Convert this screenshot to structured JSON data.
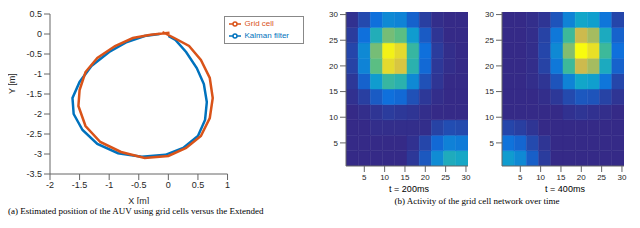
{
  "chart_data": [
    {
      "type": "line",
      "caption": "(a) Estimated position of the AUV using grid cells versus the Extended",
      "xlabel": "X [m]",
      "ylabel": "Y [m]",
      "xlim": [
        -2,
        1
      ],
      "xticks": [
        -2,
        -1.5,
        -1,
        -0.5,
        0,
        0.5,
        1
      ],
      "ylim": [
        -3.5,
        0.5
      ],
      "yticks": [
        -3.5,
        -3,
        -2.5,
        -2,
        -1.5,
        -1,
        -0.5,
        0,
        0.5
      ],
      "grid": false,
      "legend": "upper right",
      "series": [
        {
          "name": "Kalman filter",
          "color": "#0072bd",
          "x": [
            -0.15,
            -0.4,
            -0.7,
            -1.0,
            -1.3,
            -1.5,
            -1.62,
            -1.6,
            -1.45,
            -1.2,
            -0.85,
            -0.45,
            -0.05,
            0.25,
            0.5,
            0.62,
            0.65,
            0.6,
            0.48,
            0.3,
            0.12,
            0.0
          ],
          "values": [
            0.0,
            -0.05,
            -0.2,
            -0.45,
            -0.8,
            -1.2,
            -1.6,
            -2.0,
            -2.4,
            -2.75,
            -2.98,
            -3.07,
            -3.02,
            -2.85,
            -2.55,
            -2.15,
            -1.7,
            -1.25,
            -0.85,
            -0.45,
            -0.15,
            -0.05
          ]
        },
        {
          "name": "Grid cell",
          "color": "#d95319",
          "x": [
            0.02,
            -0.3,
            -0.6,
            -0.9,
            -1.2,
            -1.4,
            -1.5,
            -1.52,
            -1.4,
            -1.15,
            -0.8,
            -0.4,
            0.0,
            0.3,
            0.55,
            0.7,
            0.75,
            0.7,
            0.55,
            0.35,
            0.1,
            -0.1
          ],
          "values": [
            0.03,
            -0.02,
            -0.1,
            -0.3,
            -0.6,
            -0.95,
            -1.4,
            -1.8,
            -2.3,
            -2.7,
            -2.95,
            -3.1,
            -3.05,
            -2.85,
            -2.55,
            -2.1,
            -1.6,
            -1.1,
            -0.65,
            -0.3,
            -0.1,
            0.05
          ]
        }
      ]
    },
    {
      "type": "heatmap",
      "caption": "(b) Activity of the grid cell network over time",
      "xlim": [
        0.5,
        30.5
      ],
      "ylim": [
        0.5,
        30.5
      ],
      "xticks": [
        5,
        10,
        15,
        20,
        25,
        30
      ],
      "yticks": [
        5,
        10,
        15,
        20,
        25,
        30
      ],
      "x_edges": [
        0.5,
        3.5,
        6.5,
        9.5,
        12.5,
        15.5,
        18.5,
        21.5,
        24.5,
        27.5,
        30.5
      ],
      "y_edges": [
        0.5,
        3.5,
        6.5,
        9.5,
        12.5,
        15.5,
        18.5,
        21.5,
        24.5,
        27.5,
        30.5
      ],
      "panels": [
        {
          "title": "t = 200ms",
          "cells": [
            [
              0,
              0,
              0,
              0,
              0,
              0.04,
              0.13,
              0.3,
              0.44,
              0.41
            ],
            [
              0,
              0,
              0,
              0,
              0,
              0.02,
              0.08,
              0.18,
              0.26,
              0.24
            ],
            [
              0,
              0,
              0.01,
              0.01,
              0.01,
              0.01,
              0.01,
              0.07,
              0.1,
              0.09
            ],
            [
              0,
              0.01,
              0.03,
              0.05,
              0.04,
              0.03,
              0.01,
              0,
              0,
              0
            ],
            [
              0.02,
              0.06,
              0.14,
              0.2,
              0.18,
              0.11,
              0.04,
              0.01,
              0,
              0
            ],
            [
              0.04,
              0.16,
              0.36,
              0.52,
              0.48,
              0.29,
              0.11,
              0.03,
              0,
              0
            ],
            [
              0.07,
              0.27,
              0.61,
              0.88,
              0.82,
              0.48,
              0.18,
              0.04,
              0.01,
              0
            ],
            [
              0.08,
              0.29,
              0.65,
              0.95,
              0.88,
              0.52,
              0.2,
              0.05,
              0.01,
              0
            ],
            [
              0.05,
              0.2,
              0.45,
              0.65,
              0.61,
              0.36,
              0.14,
              0.03,
              0,
              0
            ],
            [
              0.02,
              0.09,
              0.2,
              0.29,
              0.27,
              0.16,
              0.06,
              0.01,
              0,
              0
            ]
          ]
        },
        {
          "title": "t = 400ms",
          "cells": [
            [
              0.36,
              0.29,
              0.15,
              0.05,
              0,
              0,
              0,
              0,
              0,
              0
            ],
            [
              0.21,
              0.17,
              0.09,
              0.03,
              0,
              0,
              0,
              0,
              0,
              0
            ],
            [
              0.08,
              0.06,
              0.03,
              0,
              0,
              0,
              0,
              0,
              0,
              0
            ],
            [
              0,
              0,
              0,
              0,
              0,
              0.02,
              0.03,
              0.02,
              0.01,
              0
            ],
            [
              0,
              0,
              0,
              0.01,
              0.04,
              0.09,
              0.13,
              0.12,
              0.07,
              0.03
            ],
            [
              0,
              0,
              0.01,
              0.03,
              0.12,
              0.27,
              0.4,
              0.37,
              0.22,
              0.08
            ],
            [
              0,
              0,
              0.01,
              0.07,
              0.23,
              0.54,
              0.78,
              0.72,
              0.43,
              0.16
            ],
            [
              0,
              0,
              0.01,
              0.08,
              0.29,
              0.67,
              0.98,
              0.9,
              0.54,
              0.2
            ],
            [
              0,
              0,
              0.01,
              0.07,
              0.23,
              0.54,
              0.78,
              0.72,
              0.43,
              0.16
            ],
            [
              0,
              0,
              0.01,
              0.03,
              0.12,
              0.27,
              0.4,
              0.37,
              0.22,
              0.08
            ]
          ]
        }
      ]
    }
  ]
}
